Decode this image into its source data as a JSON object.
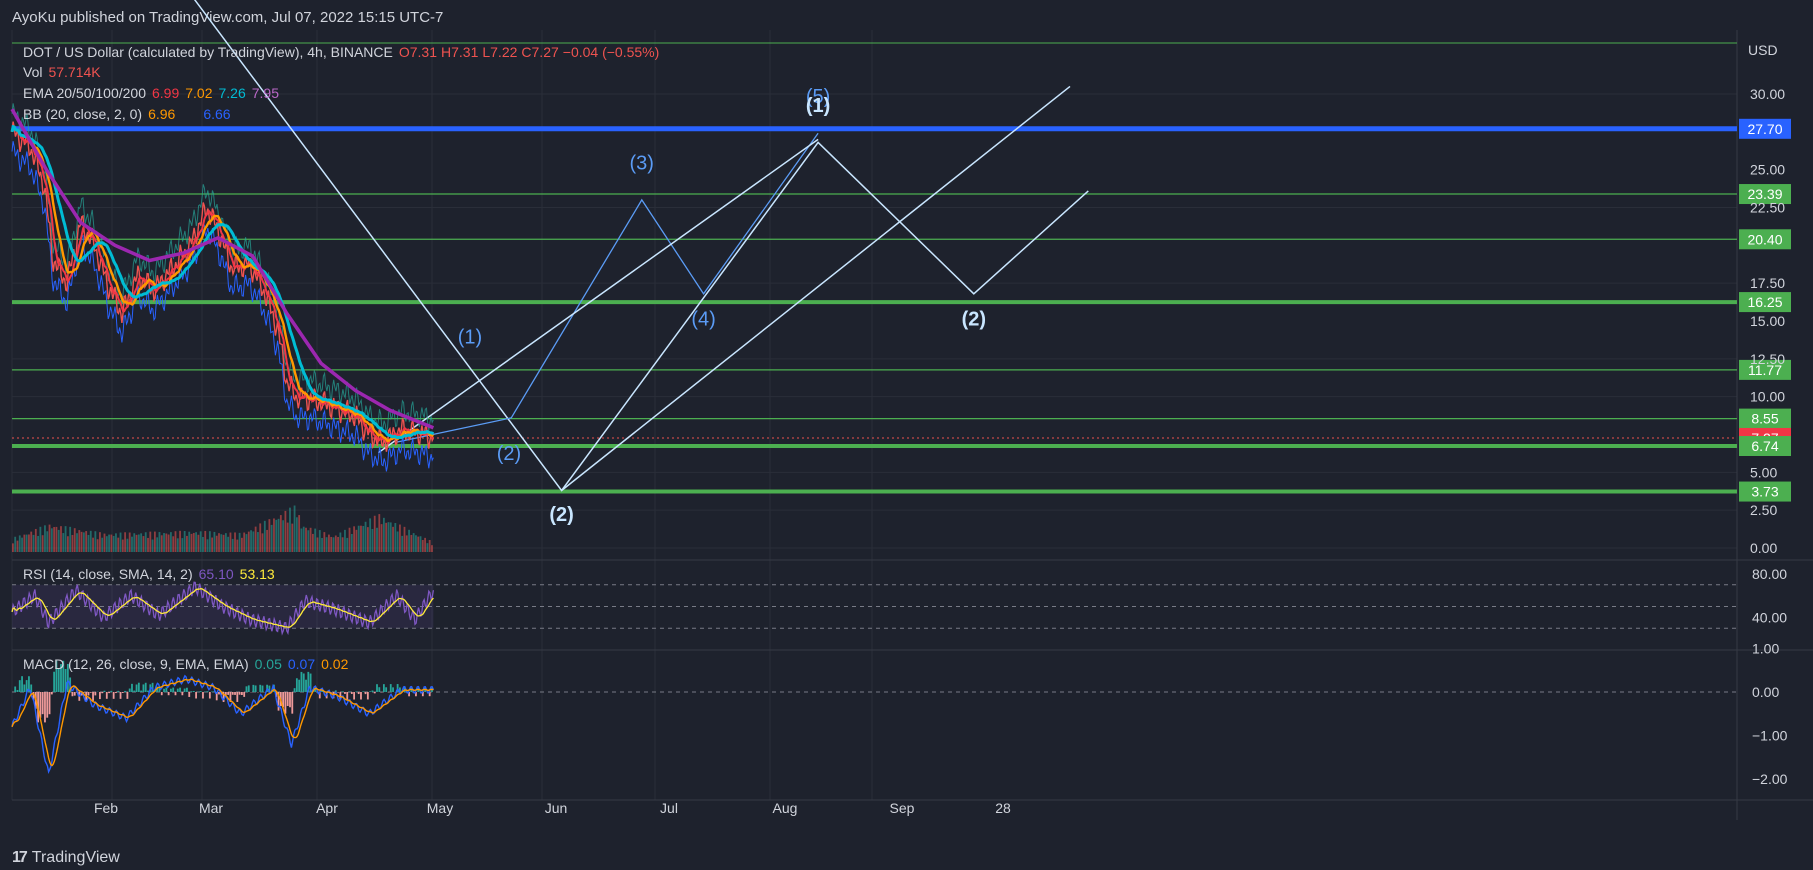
{
  "header": {
    "published": "AyoKu published on TradingView.com, Jul 07, 2022 15:15 UTC-7"
  },
  "footer": {
    "brand": "TradingView"
  },
  "legend": {
    "symbol": "DOT / US Dollar (calculated by TradingView), 4h, BINANCE",
    "o": "O7.31",
    "h": "H7.31",
    "l": "L7.22",
    "c": "C7.27",
    "chg": "−0.04 (−0.55%)",
    "vol_label": "Vol",
    "vol_value": "57.714K",
    "ema_label": "EMA 20/50/100/200",
    "ema_values": [
      "6.99",
      "7.02",
      "7.26",
      "7.95"
    ],
    "bb_label": "BB (20, close, 2, 0)",
    "bb_values": [
      "6.96",
      "6.66"
    ],
    "rsi_label": "RSI (14, close, SMA, 14, 2)",
    "rsi_values": [
      "65.10",
      "53.13"
    ],
    "macd_label": "MACD (12, 26, close, 9, EMA, EMA)",
    "macd_values": [
      "0.05",
      "0.07",
      "0.02"
    ]
  },
  "colors": {
    "bg": "#1e222d",
    "grid": "#2a2e39",
    "up": "#26a69a",
    "down": "#ef5350",
    "ema20": "#f23645",
    "ema50": "#ff9800",
    "ema100": "#00bcd4",
    "ema200": "#9c27b0",
    "level": "#4caf50",
    "blue_level": "#2962ff",
    "wave_white": "#c9e6ff",
    "wave_blue": "#5b9cf6"
  },
  "chart_data": {
    "type": "line",
    "title": "DOT / US Dollar (calculated by TradingView), 4h, BINANCE",
    "currency": "USD",
    "x_ticks": [
      "Feb",
      "Mar",
      "Apr",
      "May",
      "Jun",
      "Jul",
      "Aug",
      "Sep",
      "28"
    ],
    "y_ticks": [
      "30.00",
      "25.00",
      "22.50",
      "17.50",
      "15.00",
      "12.50",
      "10.00",
      "5.00",
      "2.50",
      "0.00"
    ],
    "price_ylim": [
      0,
      32.5
    ],
    "levels": [
      {
        "label": "27.70",
        "value": 27.7,
        "kind": "blue"
      },
      {
        "label": "23.39",
        "value": 23.39,
        "kind": "green"
      },
      {
        "label": "20.40",
        "value": 20.4,
        "kind": "green"
      },
      {
        "label": "16.25",
        "value": 16.25,
        "kind": "green-thick"
      },
      {
        "label": "11.77",
        "value": 11.77,
        "kind": "green"
      },
      {
        "label": "8.55",
        "value": 8.55,
        "kind": "green"
      },
      {
        "label": "7.27",
        "value": 7.27,
        "kind": "last"
      },
      {
        "label": "6.74",
        "value": 6.74,
        "kind": "green-thick"
      },
      {
        "label": "3.73",
        "value": 3.73,
        "kind": "green-thick"
      }
    ],
    "price_series": [
      {
        "d": 0,
        "v": 27.5
      },
      {
        "d": 8,
        "v": 26.5
      },
      {
        "d": 14,
        "v": 24
      },
      {
        "d": 18,
        "v": 19
      },
      {
        "d": 24,
        "v": 17.5
      },
      {
        "d": 30,
        "v": 21.5
      },
      {
        "d": 36,
        "v": 20
      },
      {
        "d": 42,
        "v": 17.3
      },
      {
        "d": 48,
        "v": 15.5
      },
      {
        "d": 55,
        "v": 18
      },
      {
        "d": 62,
        "v": 17
      },
      {
        "d": 70,
        "v": 18.5
      },
      {
        "d": 78,
        "v": 20
      },
      {
        "d": 85,
        "v": 22.5
      },
      {
        "d": 90,
        "v": 21
      },
      {
        "d": 96,
        "v": 18.5
      },
      {
        "d": 104,
        "v": 18.7
      },
      {
        "d": 110,
        "v": 17
      },
      {
        "d": 116,
        "v": 14.5
      },
      {
        "d": 120,
        "v": 11
      },
      {
        "d": 124,
        "v": 10
      },
      {
        "d": 132,
        "v": 9.8
      },
      {
        "d": 142,
        "v": 9.2
      },
      {
        "d": 150,
        "v": 8.7
      },
      {
        "d": 156,
        "v": 7.5
      },
      {
        "d": 162,
        "v": 7
      },
      {
        "d": 170,
        "v": 7.8
      },
      {
        "d": 178,
        "v": 7.6
      },
      {
        "d": 184,
        "v": 7.27
      }
    ],
    "ema200_series": [
      {
        "d": 0,
        "v": 29
      },
      {
        "d": 15,
        "v": 25
      },
      {
        "d": 30,
        "v": 21.5
      },
      {
        "d": 45,
        "v": 20
      },
      {
        "d": 60,
        "v": 19
      },
      {
        "d": 75,
        "v": 19.5
      },
      {
        "d": 90,
        "v": 20.5
      },
      {
        "d": 105,
        "v": 19.3
      },
      {
        "d": 120,
        "v": 15.5
      },
      {
        "d": 135,
        "v": 12.2
      },
      {
        "d": 150,
        "v": 10.4
      },
      {
        "d": 165,
        "v": 9.1
      },
      {
        "d": 184,
        "v": 7.95
      }
    ],
    "volume_series": [
      {
        "d": 0,
        "v": 0.3
      },
      {
        "d": 16,
        "v": 0.6
      },
      {
        "d": 40,
        "v": 0.4
      },
      {
        "d": 80,
        "v": 0.45
      },
      {
        "d": 100,
        "v": 0.4
      },
      {
        "d": 124,
        "v": 1.0
      },
      {
        "d": 126,
        "v": 0.6
      },
      {
        "d": 140,
        "v": 0.35
      },
      {
        "d": 160,
        "v": 0.8
      },
      {
        "d": 184,
        "v": 0.2
      }
    ],
    "wave_white": [
      {
        "d": 76,
        "v": 37
      },
      {
        "d": 240,
        "v": 3.8
      },
      {
        "d": 352,
        "v": 26.8
      },
      {
        "d": 420,
        "v": 16.8
      },
      {
        "d": 470,
        "v": 23.6
      }
    ],
    "wave_blue": [
      {
        "d": 168,
        "v": 7
      },
      {
        "d": 218,
        "v": 8.6
      },
      {
        "d": 275,
        "v": 23
      },
      {
        "d": 302,
        "v": 16.8
      },
      {
        "d": 352,
        "v": 27.4
      }
    ],
    "channel_lines": [
      [
        {
          "d": 160,
          "v": 6.3
        },
        {
          "d": 352,
          "v": 27
        }
      ],
      [
        {
          "d": 240,
          "v": 3.8
        },
        {
          "d": 462,
          "v": 30.5
        }
      ]
    ],
    "wave_labels": [
      {
        "text": "(1)",
        "d": 200,
        "v": 13.5,
        "color": "blue"
      },
      {
        "text": "(2)",
        "d": 217,
        "v": 5.8,
        "color": "blue"
      },
      {
        "text": "(3)",
        "d": 275,
        "v": 25,
        "color": "blue"
      },
      {
        "text": "(4)",
        "d": 302,
        "v": 14.7,
        "color": "blue"
      },
      {
        "text": "(5)",
        "d": 352,
        "v": 29.4,
        "color": "blue"
      },
      {
        "text": "(1)",
        "d": 352,
        "v": 28.8,
        "color": "white"
      },
      {
        "text": "(2)",
        "d": 240,
        "v": 1.8,
        "color": "white"
      },
      {
        "text": "(2)",
        "d": 420,
        "v": 14.7,
        "color": "white"
      }
    ],
    "rsi": {
      "ylim": [
        10,
        90
      ],
      "ticks": [
        "80.00",
        "40.00"
      ],
      "band": [
        30,
        70
      ],
      "series": [
        {
          "d": 0,
          "v": 45
        },
        {
          "d": 10,
          "v": 60
        },
        {
          "d": 16,
          "v": 35
        },
        {
          "d": 28,
          "v": 65
        },
        {
          "d": 40,
          "v": 40
        },
        {
          "d": 52,
          "v": 60
        },
        {
          "d": 64,
          "v": 42
        },
        {
          "d": 80,
          "v": 68
        },
        {
          "d": 92,
          "v": 50
        },
        {
          "d": 104,
          "v": 38
        },
        {
          "d": 120,
          "v": 30
        },
        {
          "d": 128,
          "v": 55
        },
        {
          "d": 140,
          "v": 48
        },
        {
          "d": 156,
          "v": 35
        },
        {
          "d": 168,
          "v": 60
        },
        {
          "d": 176,
          "v": 38
        },
        {
          "d": 184,
          "v": 65
        }
      ]
    },
    "macd": {
      "ylim": [
        -2.6,
        1.4
      ],
      "ticks": [
        "1.00",
        "0.00",
        "−1.00",
        "−2.00"
      ],
      "series": [
        {
          "d": 0,
          "v": -0.8
        },
        {
          "d": 8,
          "v": 0.1
        },
        {
          "d": 16,
          "v": -1.9
        },
        {
          "d": 24,
          "v": 0.2
        },
        {
          "d": 36,
          "v": -0.3
        },
        {
          "d": 50,
          "v": -0.6
        },
        {
          "d": 62,
          "v": 0.1
        },
        {
          "d": 76,
          "v": 0.3
        },
        {
          "d": 88,
          "v": 0.1
        },
        {
          "d": 100,
          "v": -0.5
        },
        {
          "d": 114,
          "v": 0.1
        },
        {
          "d": 122,
          "v": -1.2
        },
        {
          "d": 130,
          "v": 0.1
        },
        {
          "d": 142,
          "v": -0.1
        },
        {
          "d": 156,
          "v": -0.5
        },
        {
          "d": 170,
          "v": 0.05
        },
        {
          "d": 184,
          "v": 0.05
        }
      ]
    }
  }
}
